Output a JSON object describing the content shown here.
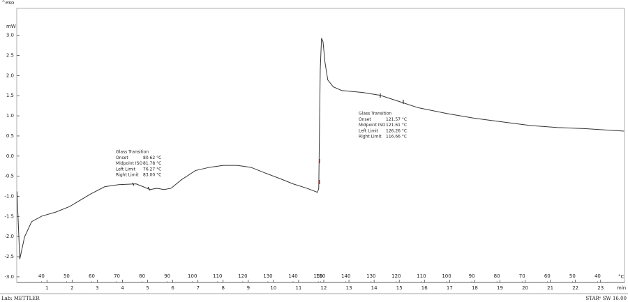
{
  "chart_data": {
    "type": "line",
    "corner_label": "^exo",
    "y_label": "mW",
    "x_label": "min",
    "x2_label": "°C",
    "color": "#333333",
    "x": [
      -0.19,
      -0.08,
      0.11,
      0.39,
      0.8,
      1.36,
      1.91,
      2.74,
      3.3,
      3.85,
      4.54,
      4.82,
      5.01,
      5.1,
      5.37,
      5.65,
      5.93,
      6.34,
      6.9,
      7.45,
      8.01,
      8.56,
      9.11,
      9.67,
      10.22,
      10.78,
      11.33,
      11.75,
      11.8,
      11.86,
      11.91,
      11.97,
      12.05,
      12.16,
      12.38,
      12.71,
      13.55,
      14.24,
      14.93,
      15.76,
      16.87,
      17.98,
      19.09,
      20.19,
      21.3,
      22.41,
      23.93
    ],
    "values": [
      -0.88,
      -2.56,
      -2.01,
      -1.63,
      -1.49,
      -1.39,
      -1.25,
      -0.94,
      -0.76,
      -0.71,
      -0.69,
      -0.76,
      -0.81,
      -0.83,
      -0.8,
      -0.83,
      -0.8,
      -0.59,
      -0.36,
      -0.28,
      -0.23,
      -0.23,
      -0.28,
      -0.42,
      -0.55,
      -0.69,
      -0.8,
      -0.9,
      -0.8,
      2.15,
      2.93,
      2.84,
      2.32,
      1.89,
      1.72,
      1.63,
      1.58,
      1.51,
      1.37,
      1.2,
      1.06,
      0.94,
      0.85,
      0.76,
      0.71,
      0.68,
      0.62
    ],
    "xlim": [
      -0.2,
      23.95
    ],
    "xticks": [
      1,
      2,
      3,
      4,
      5,
      6,
      7,
      8,
      9,
      10,
      11,
      12,
      13,
      14,
      15,
      16,
      17,
      18,
      19,
      20,
      21,
      22,
      23
    ],
    "x2ticks": [
      {
        "value": 0.78,
        "label": "40"
      },
      {
        "value": 1.78,
        "label": "50"
      },
      {
        "value": 2.78,
        "label": "60"
      },
      {
        "value": 3.78,
        "label": "70"
      },
      {
        "value": 4.78,
        "label": "80"
      },
      {
        "value": 5.78,
        "label": "90"
      },
      {
        "value": 6.78,
        "label": "100"
      },
      {
        "value": 7.78,
        "label": "110"
      },
      {
        "value": 8.78,
        "label": "120"
      },
      {
        "value": 9.78,
        "label": "130"
      },
      {
        "value": 10.78,
        "label": "140"
      },
      {
        "value": 11.78,
        "label": "150"
      },
      {
        "value": 11.88,
        "label": "150"
      },
      {
        "value": 12.88,
        "label": "140"
      },
      {
        "value": 13.88,
        "label": "130"
      },
      {
        "value": 14.88,
        "label": "120"
      },
      {
        "value": 15.88,
        "label": "110"
      },
      {
        "value": 16.88,
        "label": "100"
      },
      {
        "value": 17.88,
        "label": "90"
      },
      {
        "value": 18.88,
        "label": "80"
      },
      {
        "value": 19.88,
        "label": "70"
      },
      {
        "value": 20.88,
        "label": "60"
      },
      {
        "value": 21.88,
        "label": "50"
      },
      {
        "value": 22.88,
        "label": "40"
      }
    ],
    "ylim": [
      -3.14,
      3.67
    ],
    "yticks": [
      {
        "value": 3,
        "label": "3.0"
      },
      2.5,
      {
        "value": 2,
        "label": "2.0"
      },
      1.5,
      {
        "value": 1,
        "label": "1.0"
      },
      0.5,
      {
        "value": 0,
        "label": "0.0"
      },
      -0.5,
      {
        "value": -1,
        "label": "-1.0"
      },
      -1.5,
      {
        "value": -2,
        "label": "-2.0"
      },
      -2.5,
      {
        "value": -3,
        "label": "-3.0"
      }
    ],
    "annotations": [
      {
        "title": "Glass Transition",
        "rows": [
          [
            "Onset",
            "80.62 °C"
          ],
          [
            "Midpoint ISO",
            "81.78 °C"
          ],
          [
            "Left Limit",
            "76.27 °C"
          ],
          [
            "Right Limit",
            "83.00 °C"
          ]
        ]
      },
      {
        "title": "Glass Transition",
        "rows": [
          [
            "Onset",
            "121.57 °C"
          ],
          [
            "Midpoint ISO",
            "121.61 °C"
          ],
          [
            "Left Limit",
            "126.26 °C"
          ],
          [
            "Right Limit",
            "116.66 °C"
          ]
        ]
      }
    ]
  },
  "footer": {
    "left": "Lab: METTLER",
    "right": "STARᵉ SW 16.00"
  }
}
